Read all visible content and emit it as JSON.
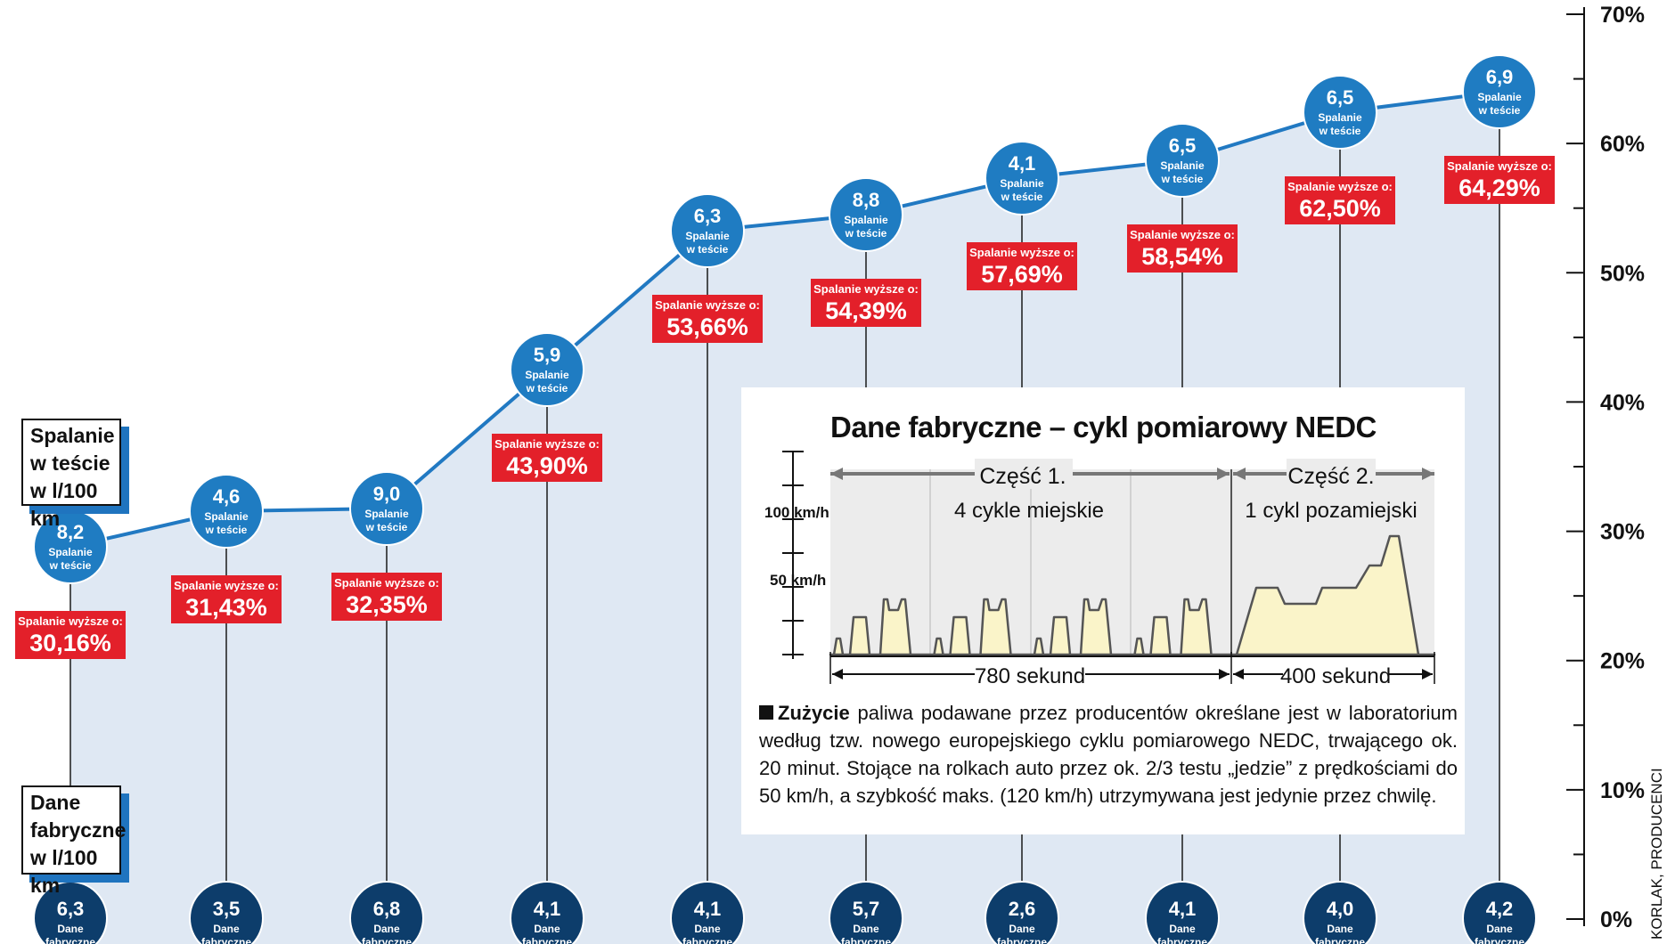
{
  "colors": {
    "bubble_blue": "#1f7cc2",
    "bubble_dark": "#0d3d6b",
    "percent_red": "#e3202a",
    "line_blue": "#2179c2",
    "area_fill": "#dfe8f3"
  },
  "legend": {
    "test_lines": [
      "Spalanie",
      "w teście",
      "w l/100 km"
    ],
    "factory_lines": [
      "Dane",
      "fabryczne",
      "w l/100 km"
    ]
  },
  "chart_data": {
    "type": "line",
    "y_axis": {
      "ylim": [
        0,
        70
      ],
      "ticks": [
        "0%",
        "10%",
        "20%",
        "30%",
        "40%",
        "50%",
        "60%",
        "70%"
      ],
      "position": "right"
    },
    "series": [
      {
        "name": "Spalanie w teście w l/100 km",
        "values": [
          8.2,
          4.6,
          9.0,
          5.9,
          6.3,
          8.8,
          4.1,
          6.5,
          6.5,
          6.9
        ]
      },
      {
        "name": "Dane fabryczne w l/100 km",
        "values": [
          6.3,
          3.5,
          6.8,
          4.1,
          4.1,
          5.7,
          2.6,
          4.1,
          4.0,
          4.2
        ]
      },
      {
        "name": "Spalanie wyższe o:",
        "values": [
          30.16,
          31.43,
          32.35,
          43.9,
          53.66,
          54.39,
          57.69,
          58.54,
          62.5,
          64.29
        ]
      }
    ],
    "test_value_labels": [
      "8,2",
      "4,6",
      "9,0",
      "5,9",
      "6,3",
      "8,8",
      "4,1",
      "6,5",
      "6,5",
      "6,9"
    ],
    "factory_value_labels": [
      "6,3",
      "3,5",
      "6,8",
      "4,1",
      "4,1",
      "5,7",
      "2,6",
      "4,1",
      "4,0",
      "4,2"
    ],
    "percent_labels": [
      "30,16%",
      "31,43%",
      "32,35%",
      "43,90%",
      "53,66%",
      "54,39%",
      "57,69%",
      "58,54%",
      "62,50%",
      "64,29%"
    ],
    "bubble_caption_test": [
      "Spalanie",
      "w teście"
    ],
    "bubble_caption_factory": [
      "Dane",
      "fabryczne"
    ],
    "percent_caption": "Spalanie wyższe o:",
    "grid": false,
    "legend_placement": "left"
  },
  "inset": {
    "title": "Dane fabryczne – cykl pomiarowy NEDC",
    "part1_label": "Część 1.",
    "part1_sub": "4 cykle miejskie",
    "part2_label": "Część 2.",
    "part2_sub": "1 cykl pozamiejski",
    "y_labels": [
      "100 km/h",
      "50 km/h"
    ],
    "duration1": "780 sekund",
    "duration2": "400 sekund",
    "desc_bold": "Zużycie",
    "desc_text": " paliwa podawane przez producentów określane jest w laboratorium według tzw. nowego europejskiego cyklu pomiarowego NEDC, trwającego ok. 20 minut. Stojące na rolkach auto przez ok. 2/3 testu „jedzie” z prędkościami do 50 km/h, a szybkość maks. (120 km/h) utrzymywana jest jedynie przez chwilę."
  },
  "source": "KORLAK, PRODUCENCI"
}
